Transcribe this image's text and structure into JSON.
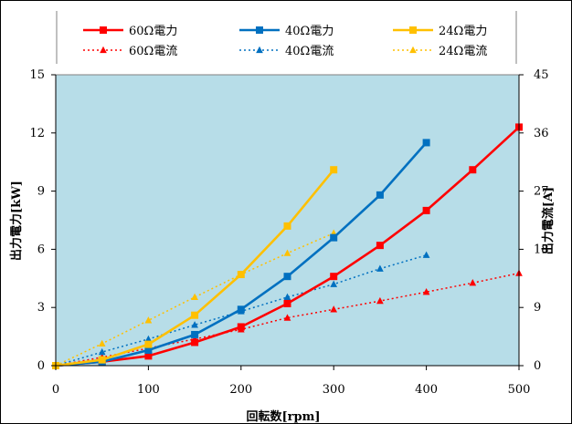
{
  "chart_data": {
    "type": "line",
    "title": "",
    "xlabel": "回転数[rpm]",
    "ylabel_left": "出力電力[kW]",
    "ylabel_right": "出力電流[A]",
    "x_ticks": [
      "0",
      "100",
      "200",
      "300",
      "400",
      "500"
    ],
    "y_left_ticks": [
      "0",
      "3",
      "6",
      "9",
      "12",
      "15"
    ],
    "y_right_ticks": [
      "0",
      "9",
      "18",
      "27",
      "36",
      "45"
    ],
    "xlim": [
      0,
      500
    ],
    "ylim_left": [
      0,
      15
    ],
    "ylim_right": [
      0,
      45
    ],
    "grid": false,
    "plot_background": "#b7dde8",
    "legend_position": "top",
    "series": [
      {
        "name": "60Ω電力",
        "axis": "left",
        "style": "solid",
        "marker": "square",
        "color": "#ff0000",
        "points": [
          [
            0,
            0
          ],
          [
            50,
            0.2
          ],
          [
            100,
            0.5
          ],
          [
            150,
            1.2
          ],
          [
            200,
            2.0
          ],
          [
            250,
            3.2
          ],
          [
            300,
            4.6
          ],
          [
            350,
            6.2
          ],
          [
            400,
            8.0
          ],
          [
            450,
            10.1
          ],
          [
            500,
            12.3
          ]
        ]
      },
      {
        "name": "40Ω電力",
        "axis": "left",
        "style": "solid",
        "marker": "square",
        "color": "#0070c0",
        "points": [
          [
            0,
            0
          ],
          [
            50,
            0.2
          ],
          [
            100,
            0.8
          ],
          [
            150,
            1.6
          ],
          [
            200,
            2.9
          ],
          [
            250,
            4.6
          ],
          [
            300,
            6.6
          ],
          [
            350,
            8.8
          ],
          [
            400,
            11.5
          ]
        ]
      },
      {
        "name": "24Ω電力",
        "axis": "left",
        "style": "solid",
        "marker": "square",
        "color": "#ffc000",
        "points": [
          [
            0,
            0
          ],
          [
            50,
            0.3
          ],
          [
            100,
            1.1
          ],
          [
            150,
            2.6
          ],
          [
            200,
            4.7
          ],
          [
            250,
            7.2
          ],
          [
            300,
            10.1
          ]
        ]
      },
      {
        "name": "60Ω電流",
        "axis": "right",
        "style": "dotted",
        "marker": "triangle",
        "color": "#ff0000",
        "points": [
          [
            0,
            0
          ],
          [
            50,
            1.3
          ],
          [
            100,
            2.7
          ],
          [
            150,
            4.1
          ],
          [
            200,
            5.6
          ],
          [
            250,
            7.4
          ],
          [
            300,
            8.7
          ],
          [
            350,
            10.0
          ],
          [
            400,
            11.4
          ],
          [
            450,
            12.8
          ],
          [
            500,
            14.3
          ]
        ]
      },
      {
        "name": "40Ω電流",
        "axis": "right",
        "style": "dotted",
        "marker": "triangle",
        "color": "#0070c0",
        "points": [
          [
            0,
            0
          ],
          [
            50,
            2.1
          ],
          [
            100,
            4.1
          ],
          [
            150,
            6.3
          ],
          [
            200,
            8.4
          ],
          [
            250,
            10.6
          ],
          [
            300,
            12.6
          ],
          [
            350,
            15.0
          ],
          [
            400,
            17.1
          ]
        ]
      },
      {
        "name": "24Ω電流",
        "axis": "right",
        "style": "dotted",
        "marker": "triangle",
        "color": "#ffc000",
        "points": [
          [
            0,
            0
          ],
          [
            50,
            3.4
          ],
          [
            100,
            7.0
          ],
          [
            150,
            10.6
          ],
          [
            200,
            14.1
          ],
          [
            250,
            17.4
          ],
          [
            300,
            20.5
          ]
        ]
      }
    ]
  }
}
